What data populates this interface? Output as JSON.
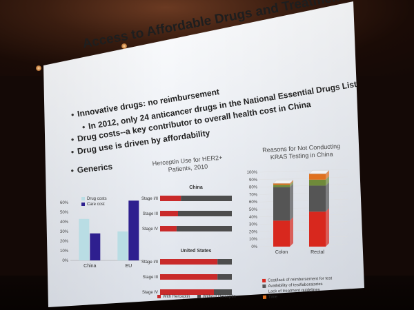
{
  "slide": {
    "title": "Access to Affordable Drugs and Treatment",
    "bullets": [
      "Innovative drugs: no reimbursement",
      "In 2012, only 24 anticancer drugs in the National Essential Drugs List",
      "Drug costs--a key contributor to overall health cost in China",
      "Drug use is driven by affordability",
      "Generics"
    ]
  },
  "colors": {
    "drug_costs": "#b9dde4",
    "care_cost": "#2e1f8f",
    "with_herceptin": "#c92a2a",
    "without_herceptin": "#4d4d4d",
    "cost_lack": "#d8281e",
    "availability": "#555555",
    "guidelines": "#6f8a3a",
    "time": "#e0711e"
  },
  "chart_data": [
    {
      "type": "bar",
      "title": "",
      "categories": [
        "China",
        "EU"
      ],
      "series": [
        {
          "name": "Drug costs",
          "values": [
            43,
            30
          ]
        },
        {
          "name": "Care cost",
          "values": [
            28,
            62
          ]
        }
      ],
      "ylim": [
        0,
        60
      ],
      "yticks": [
        "60%",
        "50%",
        "40%",
        "30%",
        "20%",
        "10%",
        "0%"
      ],
      "legend_placement": "top-left"
    },
    {
      "type": "bar",
      "title": "Herceptin Use for HER2+ Patients, 2010",
      "subcharts": [
        {
          "title": "China",
          "categories": [
            "Stage I/II",
            "Stage III",
            "Stage IV"
          ],
          "series": [
            {
              "name": "With Herceptin",
              "values": [
                29,
                25,
                23
              ]
            },
            {
              "name": "Without Herceptin",
              "values": [
                71,
                75,
                77
              ]
            }
          ]
        },
        {
          "title": "United States",
          "categories": [
            "Stage I/II",
            "Stage III",
            "Stage IV"
          ],
          "series": [
            {
              "name": "With Herceptin",
              "values": [
                80,
                80,
                75
              ]
            },
            {
              "name": "Without Herceptin",
              "values": [
                20,
                20,
                25
              ]
            }
          ]
        }
      ],
      "legend_placement": "bottom"
    },
    {
      "type": "bar",
      "title": "Reasons for Not Conducting KRAS Testing in China",
      "categories": [
        "Colon",
        "Rectal"
      ],
      "yticks": [
        "100%",
        "90%",
        "80%",
        "70%",
        "60%",
        "50%",
        "40%",
        "30%",
        "20%",
        "10%",
        "0%"
      ],
      "ylim": [
        0,
        100
      ],
      "series": [
        {
          "name": "Cost/lack of reimbursement for test",
          "values": [
            35,
            47
          ]
        },
        {
          "name": "Availability of test/laboratories",
          "values": [
            45,
            35
          ]
        },
        {
          "name": "Lack of treatment guidelines",
          "values": [
            3,
            8
          ]
        },
        {
          "name": "Time",
          "values": [
            2,
            8
          ]
        }
      ],
      "legend_placement": "bottom"
    }
  ]
}
